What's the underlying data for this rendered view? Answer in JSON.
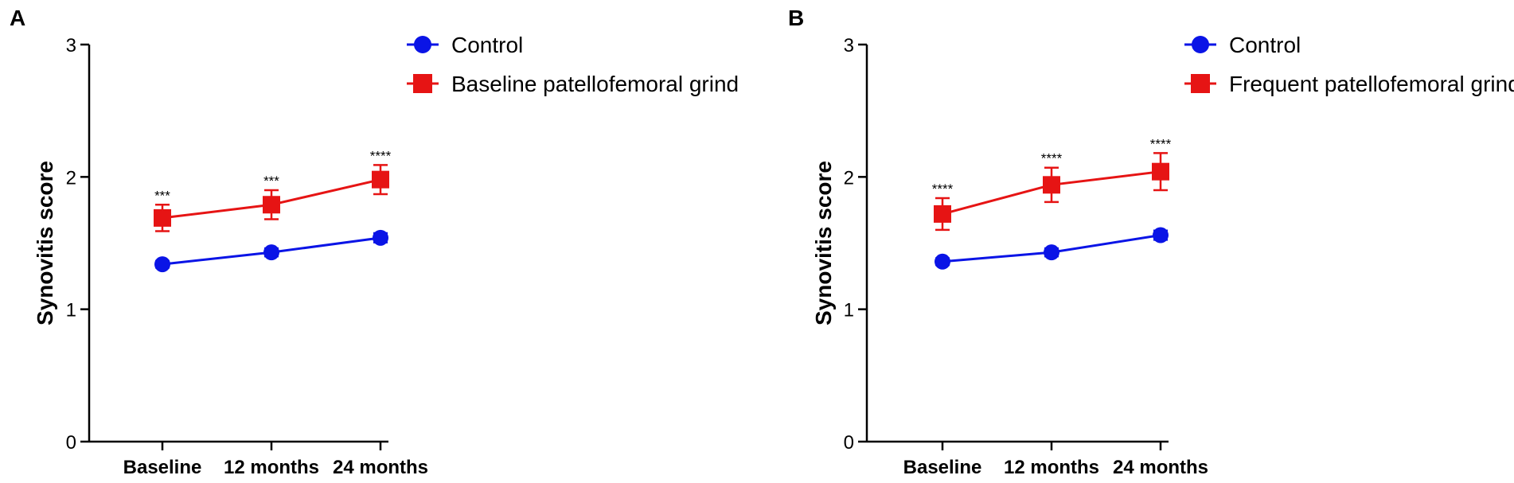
{
  "chart_data": [
    {
      "type": "line",
      "panel": "A",
      "ylabel": "Synovitis score",
      "xlabel": "",
      "ylim": [
        0,
        3
      ],
      "yticks": [
        "0",
        "1",
        "2",
        "3"
      ],
      "categories": [
        "Baseline",
        "12 months",
        "24 months"
      ],
      "legend_position": "top-right",
      "series": [
        {
          "name": "Control",
          "marker": "circle",
          "color": "#0a14e6",
          "values": [
            1.34,
            1.43,
            1.54
          ],
          "errors": [
            0.025,
            0.03,
            0.035
          ]
        },
        {
          "name": "Baseline patellofemoral grind",
          "marker": "square",
          "color": "#e61414",
          "values": [
            1.69,
            1.79,
            1.98
          ],
          "errors": [
            0.1,
            0.11,
            0.11
          ]
        }
      ],
      "annotations": [
        "***",
        "***",
        "****"
      ]
    },
    {
      "type": "line",
      "panel": "B",
      "ylabel": "Synovitis score",
      "xlabel": "",
      "ylim": [
        0,
        3
      ],
      "yticks": [
        "0",
        "1",
        "2",
        "3"
      ],
      "categories": [
        "Baseline",
        "12 months",
        "24 months"
      ],
      "legend_position": "top-right",
      "series": [
        {
          "name": "Control",
          "marker": "circle",
          "color": "#0a14e6",
          "values": [
            1.36,
            1.43,
            1.56
          ],
          "errors": [
            0.025,
            0.03,
            0.035
          ]
        },
        {
          "name": "Frequent patellofemoral grind",
          "marker": "square",
          "color": "#e61414",
          "values": [
            1.72,
            1.94,
            2.04
          ],
          "errors": [
            0.12,
            0.13,
            0.14
          ]
        }
      ],
      "annotations": [
        "****",
        "****",
        "****"
      ]
    }
  ]
}
